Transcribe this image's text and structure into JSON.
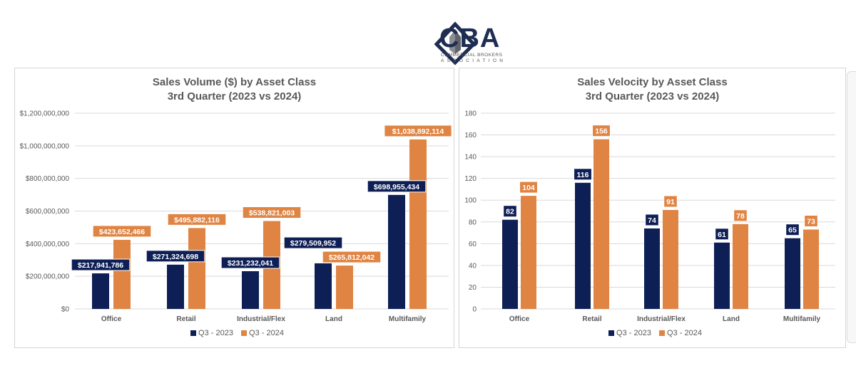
{
  "logo": {
    "name": "CBA",
    "sub1": "COMMERCIAL BROKERS",
    "sub2": "ASSOCIATION"
  },
  "colors": {
    "q3_2023": "#0e1f56",
    "q3_2024": "#e08443",
    "grid": "#d9d9d9",
    "text": "#595959"
  },
  "chart_data": [
    {
      "type": "bar",
      "title": "Sales Volume ($) by Asset Class",
      "subtitle": "3rd Quarter (2023 vs 2024)",
      "categories": [
        "Office",
        "Retail",
        "Industrial/Flex",
        "Land",
        "Multifamily"
      ],
      "series": [
        {
          "name": "Q3 - 2023",
          "values": [
            217941786,
            271324698,
            231232041,
            279509952,
            698955434
          ],
          "labels": [
            "$217,941,786",
            "$271,324,698",
            "$231,232,041",
            "$279,509,952",
            "$698,955,434"
          ]
        },
        {
          "name": "Q3 - 2024",
          "values": [
            423652466,
            495882116,
            538821003,
            265812042,
            1038892114
          ],
          "labels": [
            "$423,652,466",
            "$495,882,116",
            "$538,821,003",
            "$265,812,042",
            "$1,038,892,114"
          ]
        }
      ],
      "ylim": [
        0,
        1200000000
      ],
      "yticks": [
        "$0",
        "$200,000,000",
        "$400,000,000",
        "$600,000,000",
        "$800,000,000",
        "$1,000,000,000",
        "$1,200,000,000"
      ],
      "legend": "bottom",
      "grid": true
    },
    {
      "type": "bar",
      "title": "Sales Velocity by Asset Class",
      "subtitle": "3rd Quarter (2023 vs 2024)",
      "categories": [
        "Office",
        "Retail",
        "Industrial/Flex",
        "Land",
        "Multifamily"
      ],
      "series": [
        {
          "name": "Q3 - 2023",
          "values": [
            82,
            116,
            74,
            61,
            65
          ],
          "labels": [
            "82",
            "116",
            "74",
            "61",
            "65"
          ]
        },
        {
          "name": "Q3 - 2024",
          "values": [
            104,
            156,
            91,
            78,
            73
          ],
          "labels": [
            "104",
            "156",
            "91",
            "78",
            "73"
          ]
        }
      ],
      "ylim": [
        0,
        180
      ],
      "yticks": [
        "0",
        "20",
        "40",
        "60",
        "80",
        "100",
        "120",
        "140",
        "160",
        "180"
      ],
      "legend": "bottom",
      "grid": true
    }
  ]
}
